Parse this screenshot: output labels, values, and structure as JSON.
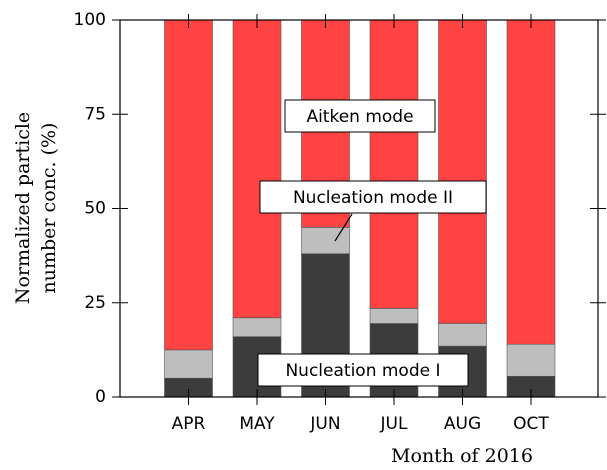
{
  "chart_data": {
    "type": "stacked_bar",
    "x_label": "Month of 2016",
    "y_label": [
      "Normalized particle",
      "number conc. (%)"
    ],
    "categories": [
      "APR",
      "MAY",
      "JUN",
      "JUL",
      "AUG",
      "OCT"
    ],
    "series": [
      {
        "name": "Nucleation mode I",
        "color": "#3c3c3c",
        "values": [
          5,
          16,
          38,
          19.5,
          13.5,
          5.5
        ]
      },
      {
        "name": "Nucleation mode II",
        "color": "#bebebe",
        "values": [
          7.5,
          5,
          7,
          4,
          6,
          8.5
        ]
      },
      {
        "name": "Aitken mode",
        "color": "#ff4242",
        "values": [
          87.5,
          79,
          55,
          76.5,
          80.5,
          86
        ]
      }
    ],
    "ylim": [
      0,
      100
    ],
    "yticks": [
      0,
      25,
      50,
      75,
      100
    ]
  }
}
